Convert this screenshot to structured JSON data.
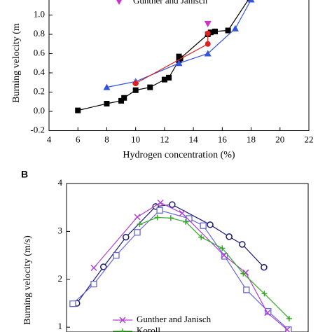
{
  "chart_data": [
    {
      "type": "line",
      "y_label": "Burning velocity (m",
      "x_label": "Hydrogen concentration (%)",
      "xlim": [
        4,
        22
      ],
      "xticks": [
        4,
        6,
        8,
        10,
        12,
        14,
        16,
        18,
        20,
        22
      ],
      "ylim": [
        -0.2,
        1.2
      ],
      "yticks": [
        -0.2,
        0.0,
        0.2,
        0.4,
        0.6,
        0.8,
        1.0
      ],
      "series": [
        {
          "color": "#000000",
          "marker": "square",
          "line": true,
          "x": [
            6,
            8,
            9,
            9.2,
            10,
            11,
            12,
            12.3,
            13,
            13,
            13.1,
            15,
            15.2,
            15.5,
            16.4,
            17.9
          ],
          "values": [
            0.01,
            0.08,
            0.11,
            0.14,
            0.22,
            0.25,
            0.33,
            0.35,
            0.53,
            0.57,
            0.55,
            0.8,
            0.82,
            0.83,
            0.84,
            1.18
          ]
        },
        {
          "color": "#3355dd",
          "marker": "triangle",
          "line": true,
          "x": [
            8,
            10,
            13,
            15,
            16.9,
            18
          ],
          "values": [
            0.25,
            0.31,
            0.5,
            0.6,
            0.86,
            1.16
          ]
        },
        {
          "color": "#e02020",
          "marker": "circle",
          "line": true,
          "x": [
            10,
            15,
            15
          ],
          "values": [
            0.29,
            0.7,
            0.81
          ]
        },
        {
          "name": "Gunther and Janisch",
          "color": "#cc33cc",
          "marker": "triangle-down",
          "line": false,
          "x": [
            15
          ],
          "values": [
            0.91
          ]
        }
      ]
    },
    {
      "type": "line",
      "label": "B",
      "y_label": "Burning velocity (m/s)",
      "xlim": [
        10,
        80
      ],
      "ylim": [
        0.9,
        4
      ],
      "yticks": [
        1,
        2,
        3,
        4
      ],
      "series": [
        {
          "color": "#1a1a6e",
          "marker": "open-circle",
          "line": true,
          "x": [
            13,
            20.7,
            27.2,
            35.8,
            40.6,
            51.6,
            57.1,
            60.9,
            67.2
          ],
          "values": [
            1.5,
            2.26,
            2.88,
            3.52,
            3.56,
            3.14,
            2.89,
            2.73,
            2.25
          ]
        },
        {
          "color": "#6666dd",
          "marker": "open-square",
          "line": true,
          "x": [
            11.8,
            17.9,
            24.4,
            30.5,
            37,
            45.5,
            49.6,
            55.8,
            62.1,
            68.4,
            74.3
          ],
          "values": [
            1.49,
            1.9,
            2.5,
            2.98,
            3.44,
            3.27,
            3.12,
            2.48,
            1.78,
            1.33,
            0.95
          ]
        },
        {
          "name": "Gunther and Janisch",
          "color": "#b040d0",
          "marker": "cross",
          "line": true,
          "x": [
            17.9,
            30.5,
            37.2,
            43.5,
            55.6,
            61.9,
            68.2,
            73.9
          ],
          "values": [
            2.24,
            3.3,
            3.6,
            3.38,
            2.5,
            2.14,
            1.3,
            0.95
          ]
        },
        {
          "name": "Koroll",
          "color": "#33aa22",
          "marker": "plus",
          "line": true,
          "x": [
            31.2,
            36.3,
            40.2,
            44.5,
            49,
            55.1,
            61.2,
            67.3,
            74.5
          ],
          "values": [
            3.15,
            3.29,
            3.28,
            3.2,
            2.88,
            2.65,
            2.12,
            1.7,
            1.18
          ]
        }
      ]
    }
  ]
}
